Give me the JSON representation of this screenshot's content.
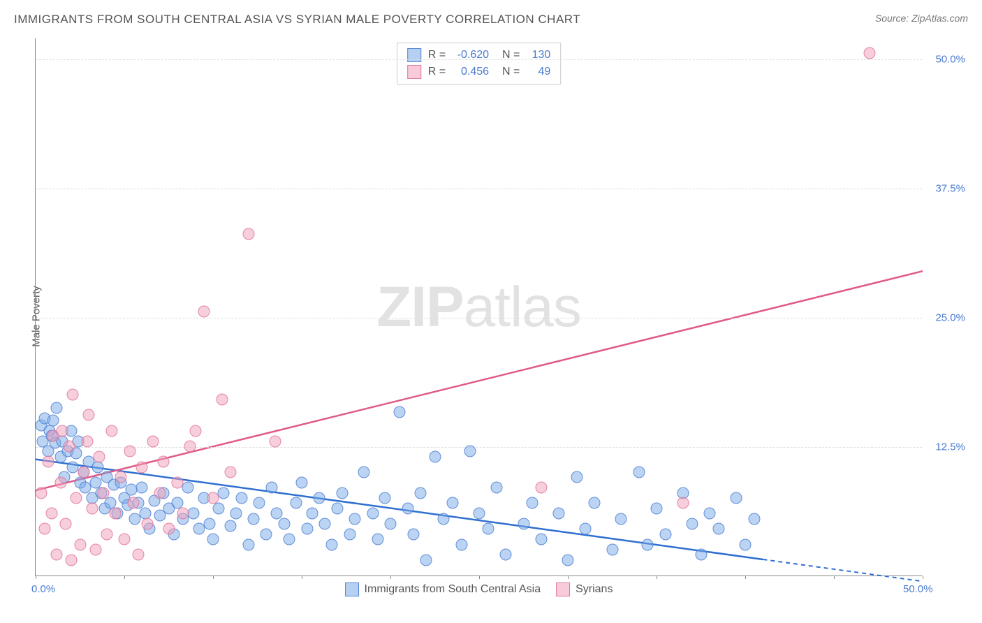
{
  "header": {
    "title": "IMMIGRANTS FROM SOUTH CENTRAL ASIA VS SYRIAN MALE POVERTY CORRELATION CHART",
    "source": "Source: ZipAtlas.com"
  },
  "chart": {
    "type": "scatter",
    "y_label": "Male Poverty",
    "watermark_bold": "ZIP",
    "watermark_light": "atlas",
    "background_color": "#ffffff",
    "grid_color": "#dddddd",
    "axis_color": "#888888",
    "tick_label_color": "#4a7bd0",
    "x_range": [
      0,
      50
    ],
    "y_range": [
      0,
      52
    ],
    "x_ticks": [
      0,
      5,
      10,
      15,
      20,
      25,
      30,
      35,
      40,
      45,
      50
    ],
    "x_tick_labels": {
      "0": "0.0%",
      "50": "50.0%"
    },
    "y_ticks": [
      12.5,
      25.0,
      37.5,
      50.0
    ],
    "y_tick_format": "%",
    "marker_radius": 8.5,
    "series": [
      {
        "id": "sca",
        "label": "Immigrants from South Central Asia",
        "fill_color": "rgba(120,169,232,0.5)",
        "stroke_color": "rgba(74,123,208,0.8)",
        "line_color": "#2f6fd0",
        "R": "-0.620",
        "N": "130",
        "trend": {
          "x1": 0,
          "y1": 11.3,
          "x2": 50,
          "y2": -0.5,
          "solid_until_x": 41
        },
        "points": [
          [
            0.3,
            14.5
          ],
          [
            0.4,
            13.0
          ],
          [
            0.5,
            15.2
          ],
          [
            0.7,
            12.0
          ],
          [
            0.8,
            14.0
          ],
          [
            0.9,
            13.5
          ],
          [
            1.0,
            15.0
          ],
          [
            1.1,
            12.8
          ],
          [
            1.2,
            16.2
          ],
          [
            1.4,
            11.5
          ],
          [
            1.5,
            13.0
          ],
          [
            1.6,
            9.5
          ],
          [
            1.8,
            12.0
          ],
          [
            2.0,
            14.0
          ],
          [
            2.1,
            10.5
          ],
          [
            2.3,
            11.8
          ],
          [
            2.4,
            13.0
          ],
          [
            2.5,
            9.0
          ],
          [
            2.7,
            10.0
          ],
          [
            2.8,
            8.5
          ],
          [
            3.0,
            11.0
          ],
          [
            3.2,
            7.5
          ],
          [
            3.4,
            9.0
          ],
          [
            3.5,
            10.5
          ],
          [
            3.7,
            8.0
          ],
          [
            3.9,
            6.5
          ],
          [
            4.0,
            9.5
          ],
          [
            4.2,
            7.0
          ],
          [
            4.4,
            8.8
          ],
          [
            4.6,
            6.0
          ],
          [
            4.8,
            9.0
          ],
          [
            5.0,
            7.5
          ],
          [
            5.2,
            6.8
          ],
          [
            5.4,
            8.3
          ],
          [
            5.6,
            5.5
          ],
          [
            5.8,
            7.0
          ],
          [
            6.0,
            8.5
          ],
          [
            6.2,
            6.0
          ],
          [
            6.4,
            4.5
          ],
          [
            6.7,
            7.2
          ],
          [
            7.0,
            5.8
          ],
          [
            7.2,
            8.0
          ],
          [
            7.5,
            6.5
          ],
          [
            7.8,
            4.0
          ],
          [
            8.0,
            7.0
          ],
          [
            8.3,
            5.5
          ],
          [
            8.6,
            8.5
          ],
          [
            8.9,
            6.0
          ],
          [
            9.2,
            4.5
          ],
          [
            9.5,
            7.5
          ],
          [
            9.8,
            5.0
          ],
          [
            10.0,
            3.5
          ],
          [
            10.3,
            6.5
          ],
          [
            10.6,
            8.0
          ],
          [
            11.0,
            4.8
          ],
          [
            11.3,
            6.0
          ],
          [
            11.6,
            7.5
          ],
          [
            12.0,
            3.0
          ],
          [
            12.3,
            5.5
          ],
          [
            12.6,
            7.0
          ],
          [
            13.0,
            4.0
          ],
          [
            13.3,
            8.5
          ],
          [
            13.6,
            6.0
          ],
          [
            14.0,
            5.0
          ],
          [
            14.3,
            3.5
          ],
          [
            14.7,
            7.0
          ],
          [
            15.0,
            9.0
          ],
          [
            15.3,
            4.5
          ],
          [
            15.6,
            6.0
          ],
          [
            16.0,
            7.5
          ],
          [
            16.3,
            5.0
          ],
          [
            16.7,
            3.0
          ],
          [
            17.0,
            6.5
          ],
          [
            17.3,
            8.0
          ],
          [
            17.7,
            4.0
          ],
          [
            18.0,
            5.5
          ],
          [
            18.5,
            10.0
          ],
          [
            19.0,
            6.0
          ],
          [
            19.3,
            3.5
          ],
          [
            19.7,
            7.5
          ],
          [
            20.0,
            5.0
          ],
          [
            20.5,
            15.8
          ],
          [
            21.0,
            6.5
          ],
          [
            21.3,
            4.0
          ],
          [
            21.7,
            8.0
          ],
          [
            22.0,
            1.5
          ],
          [
            22.5,
            11.5
          ],
          [
            23.0,
            5.5
          ],
          [
            23.5,
            7.0
          ],
          [
            24.0,
            3.0
          ],
          [
            24.5,
            12.0
          ],
          [
            25.0,
            6.0
          ],
          [
            25.5,
            4.5
          ],
          [
            26.0,
            8.5
          ],
          [
            26.5,
            2.0
          ],
          [
            27.5,
            5.0
          ],
          [
            28.0,
            7.0
          ],
          [
            28.5,
            3.5
          ],
          [
            29.5,
            6.0
          ],
          [
            30.0,
            1.5
          ],
          [
            30.5,
            9.5
          ],
          [
            31.0,
            4.5
          ],
          [
            31.5,
            7.0
          ],
          [
            32.5,
            2.5
          ],
          [
            33.0,
            5.5
          ],
          [
            34.0,
            10.0
          ],
          [
            34.5,
            3.0
          ],
          [
            35.0,
            6.5
          ],
          [
            35.5,
            4.0
          ],
          [
            36.5,
            8.0
          ],
          [
            37.0,
            5.0
          ],
          [
            37.5,
            2.0
          ],
          [
            38.0,
            6.0
          ],
          [
            38.5,
            4.5
          ],
          [
            39.5,
            7.5
          ],
          [
            40.0,
            3.0
          ],
          [
            40.5,
            5.5
          ]
        ]
      },
      {
        "id": "syr",
        "label": "Syrians",
        "fill_color": "rgba(240,160,185,0.5)",
        "stroke_color": "rgba(225,110,150,0.8)",
        "line_color": "#e05a87",
        "R": "0.456",
        "N": "49",
        "trend": {
          "x1": 0,
          "y1": 8.3,
          "x2": 50,
          "y2": 29.5,
          "solid_until_x": 50
        },
        "points": [
          [
            0.3,
            8.0
          ],
          [
            0.5,
            4.5
          ],
          [
            0.7,
            11.0
          ],
          [
            0.9,
            6.0
          ],
          [
            1.0,
            13.5
          ],
          [
            1.2,
            2.0
          ],
          [
            1.4,
            9.0
          ],
          [
            1.5,
            14.0
          ],
          [
            1.7,
            5.0
          ],
          [
            1.9,
            12.5
          ],
          [
            2.0,
            1.5
          ],
          [
            2.1,
            17.5
          ],
          [
            2.3,
            7.5
          ],
          [
            2.5,
            3.0
          ],
          [
            2.7,
            10.0
          ],
          [
            2.9,
            13.0
          ],
          [
            3.0,
            15.5
          ],
          [
            3.2,
            6.5
          ],
          [
            3.4,
            2.5
          ],
          [
            3.6,
            11.5
          ],
          [
            3.8,
            8.0
          ],
          [
            4.0,
            4.0
          ],
          [
            4.3,
            14.0
          ],
          [
            4.5,
            6.0
          ],
          [
            4.8,
            9.5
          ],
          [
            5.0,
            3.5
          ],
          [
            5.3,
            12.0
          ],
          [
            5.5,
            7.0
          ],
          [
            5.8,
            2.0
          ],
          [
            6.0,
            10.5
          ],
          [
            6.3,
            5.0
          ],
          [
            6.6,
            13.0
          ],
          [
            7.0,
            8.0
          ],
          [
            7.2,
            11.0
          ],
          [
            7.5,
            4.5
          ],
          [
            8.0,
            9.0
          ],
          [
            8.3,
            6.0
          ],
          [
            8.7,
            12.5
          ],
          [
            9.0,
            14.0
          ],
          [
            9.5,
            25.5
          ],
          [
            10.0,
            7.5
          ],
          [
            10.5,
            17.0
          ],
          [
            11.0,
            10.0
          ],
          [
            12.0,
            33.0
          ],
          [
            13.5,
            13.0
          ],
          [
            28.5,
            8.5
          ],
          [
            36.5,
            7.0
          ],
          [
            47.0,
            50.5
          ]
        ]
      }
    ],
    "legend_bottom": [
      {
        "swatch": "blue",
        "label": "Immigrants from South Central Asia"
      },
      {
        "swatch": "pink",
        "label": "Syrians"
      }
    ]
  }
}
